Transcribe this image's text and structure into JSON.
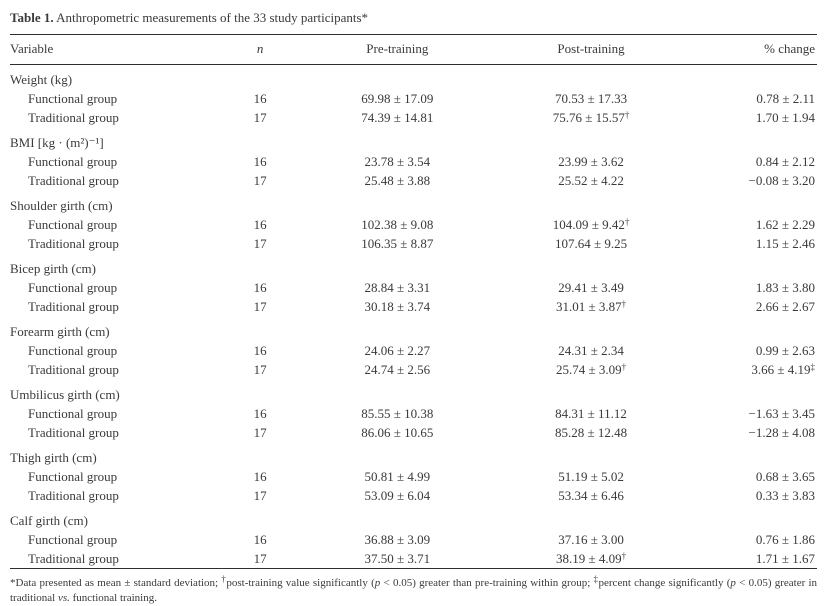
{
  "title": {
    "label": "Table 1.",
    "text": " Anthropometric measurements of the 33 study participants*"
  },
  "table": {
    "columns": [
      "Variable",
      "n",
      "Pre-training",
      "Post-training",
      "% change"
    ],
    "sections": [
      {
        "variable": "Weight (kg)",
        "rows": [
          {
            "group": "Functional group",
            "n": "16",
            "pre": "69.98 ± 17.09",
            "post": "70.53 ± 17.33",
            "post_sup": "",
            "change": "0.78 ± 2.11",
            "change_sup": ""
          },
          {
            "group": "Traditional group",
            "n": "17",
            "pre": "74.39 ± 14.81",
            "post": "75.76 ± 15.57",
            "post_sup": "†",
            "change": "1.70 ± 1.94",
            "change_sup": ""
          }
        ]
      },
      {
        "variable": "BMI [kg · (m²)⁻¹]",
        "rows": [
          {
            "group": "Functional group",
            "n": "16",
            "pre": "23.78 ± 3.54",
            "post": "23.99 ± 3.62",
            "post_sup": "",
            "change": "0.84 ± 2.12",
            "change_sup": ""
          },
          {
            "group": "Traditional group",
            "n": "17",
            "pre": "25.48 ± 3.88",
            "post": "25.52 ± 4.22",
            "post_sup": "",
            "change": "−0.08 ± 3.20",
            "change_sup": ""
          }
        ]
      },
      {
        "variable": "Shoulder girth (cm)",
        "rows": [
          {
            "group": "Functional group",
            "n": "16",
            "pre": "102.38 ± 9.08",
            "post": "104.09 ± 9.42",
            "post_sup": "†",
            "change": "1.62 ± 2.29",
            "change_sup": ""
          },
          {
            "group": "Traditional group",
            "n": "17",
            "pre": "106.35 ± 8.87",
            "post": "107.64 ± 9.25",
            "post_sup": "",
            "change": "1.15 ± 2.46",
            "change_sup": ""
          }
        ]
      },
      {
        "variable": "Bicep girth (cm)",
        "rows": [
          {
            "group": "Functional group",
            "n": "16",
            "pre": "28.84 ± 3.31",
            "post": "29.41 ± 3.49",
            "post_sup": "",
            "change": "1.83 ± 3.80",
            "change_sup": ""
          },
          {
            "group": "Traditional group",
            "n": "17",
            "pre": "30.18 ± 3.74",
            "post": "31.01 ± 3.87",
            "post_sup": "†",
            "change": "2.66 ± 2.67",
            "change_sup": ""
          }
        ]
      },
      {
        "variable": "Forearm girth (cm)",
        "rows": [
          {
            "group": "Functional group",
            "n": "16",
            "pre": "24.06 ± 2.27",
            "post": "24.31 ± 2.34",
            "post_sup": "",
            "change": "0.99 ± 2.63",
            "change_sup": ""
          },
          {
            "group": "Traditional group",
            "n": "17",
            "pre": "24.74 ± 2.56",
            "post": "25.74 ± 3.09",
            "post_sup": "†",
            "change": "3.66 ± 4.19",
            "change_sup": "‡"
          }
        ]
      },
      {
        "variable": "Umbilicus girth (cm)",
        "rows": [
          {
            "group": "Functional group",
            "n": "16",
            "pre": "85.55 ± 10.38",
            "post": "84.31 ± 11.12",
            "post_sup": "",
            "change": "−1.63 ± 3.45",
            "change_sup": ""
          },
          {
            "group": "Traditional group",
            "n": "17",
            "pre": "86.06 ± 10.65",
            "post": "85.28 ± 12.48",
            "post_sup": "",
            "change": "−1.28 ± 4.08",
            "change_sup": ""
          }
        ]
      },
      {
        "variable": "Thigh girth (cm)",
        "rows": [
          {
            "group": "Functional group",
            "n": "16",
            "pre": "50.81 ± 4.99",
            "post": "51.19 ± 5.02",
            "post_sup": "",
            "change": "0.68 ± 3.65",
            "change_sup": ""
          },
          {
            "group": "Traditional group",
            "n": "17",
            "pre": "53.09 ± 6.04",
            "post": "53.34 ± 6.46",
            "post_sup": "",
            "change": "0.33 ± 3.83",
            "change_sup": ""
          }
        ]
      },
      {
        "variable": "Calf girth (cm)",
        "rows": [
          {
            "group": "Functional group",
            "n": "16",
            "pre": "36.88 ± 3.09",
            "post": "37.16 ± 3.00",
            "post_sup": "",
            "change": "0.76 ± 1.86",
            "change_sup": ""
          },
          {
            "group": "Traditional group",
            "n": "17",
            "pre": "37.50 ± 3.71",
            "post": "38.19 ± 4.09",
            "post_sup": "†",
            "change": "1.71 ± 1.67",
            "change_sup": ""
          }
        ]
      }
    ]
  },
  "footnote": {
    "parts": [
      {
        "text": "*Data presented as mean ± standard deviation; "
      },
      {
        "text": "†",
        "sup": true
      },
      {
        "text": "post-training value significantly ("
      },
      {
        "text": "p",
        "italic": true
      },
      {
        "text": " < 0.05) greater than pre-training within group; "
      },
      {
        "text": "‡",
        "sup": true
      },
      {
        "text": "percent change significantly ("
      },
      {
        "text": "p",
        "italic": true
      },
      {
        "text": " < 0.05) greater in traditional "
      },
      {
        "text": "vs.",
        "italic": true
      },
      {
        "text": " functional training."
      }
    ]
  },
  "colors": {
    "text": "#3a3a3a",
    "rule": "#2e2e2e",
    "background": "#ffffff"
  }
}
